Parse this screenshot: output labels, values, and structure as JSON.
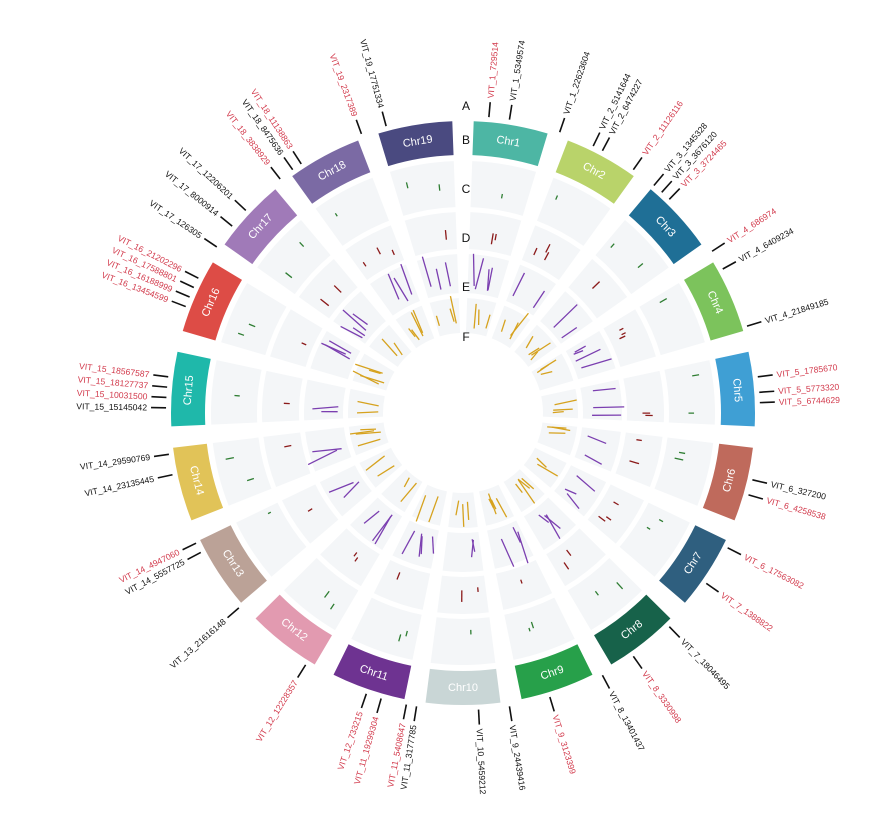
{
  "track_labels": [
    "A",
    "B",
    "C",
    "D",
    "E",
    "F"
  ],
  "colors": {
    "track_bg": "#f4f6f8",
    "label_red": "#d23a4c",
    "label_black": "#111111",
    "track_C": "#2e7d32",
    "track_D": "#8b1a1a",
    "track_E": "#7b3fb0",
    "track_F": "#d6a21e"
  },
  "chromosomes": [
    {
      "name": "Chr1",
      "color": "#4db6a4"
    },
    {
      "name": "Chr2",
      "color": "#b9d36a"
    },
    {
      "name": "Chr3",
      "color": "#1f6f96"
    },
    {
      "name": "Chr4",
      "color": "#7cc35c"
    },
    {
      "name": "Chr5",
      "color": "#3f9fd4"
    },
    {
      "name": "Chr6",
      "color": "#bf6a5c"
    },
    {
      "name": "Chr7",
      "color": "#2f5f7f"
    },
    {
      "name": "Chr8",
      "color": "#17624a"
    },
    {
      "name": "Chr9",
      "color": "#27a04a"
    },
    {
      "name": "Chr10",
      "color": "#c9d6d6"
    },
    {
      "name": "Chr11",
      "color": "#6e3391"
    },
    {
      "name": "Chr12",
      "color": "#e29ab0"
    },
    {
      "name": "Chr13",
      "color": "#bba297"
    },
    {
      "name": "Chr14",
      "color": "#e1c358"
    },
    {
      "name": "Chr15",
      "color": "#1fb8aa"
    },
    {
      "name": "Chr16",
      "color": "#dd4c46"
    },
    {
      "name": "Chr17",
      "color": "#a07ab8"
    },
    {
      "name": "Chr18",
      "color": "#7b6aa4"
    },
    {
      "name": "Chr19",
      "color": "#4a4a80"
    }
  ],
  "gene_labels": [
    {
      "text": "VIT_1_729514",
      "color": "red",
      "angle": 5
    },
    {
      "text": "VIT_1_5349574",
      "color": "black",
      "angle": 9
    },
    {
      "text": "VIT_1_22623604",
      "color": "black",
      "angle": 19
    },
    {
      "text": "VIT_2_5141644",
      "color": "black",
      "angle": 26
    },
    {
      "text": "VIT_2_6474227",
      "color": "black",
      "angle": 28
    },
    {
      "text": "VIT_2_11126116",
      "color": "red",
      "angle": 35
    },
    {
      "text": "VIT_3_1345328",
      "color": "black",
      "angle": 40
    },
    {
      "text": "VIT_3_3676120",
      "color": "black",
      "angle": 42
    },
    {
      "text": "VIT_3_3724465",
      "color": "red",
      "angle": 44
    },
    {
      "text": "VIT_4_686974",
      "color": "red",
      "angle": 57
    },
    {
      "text": "VIT_4_6409234",
      "color": "black",
      "angle": 61
    },
    {
      "text": "VIT_4_21849185",
      "color": "black",
      "angle": 73
    },
    {
      "text": "VIT_5_1785670",
      "color": "red",
      "angle": 83
    },
    {
      "text": "VIT_5_5773320",
      "color": "red",
      "angle": 86
    },
    {
      "text": "VIT_5_6744629",
      "color": "red",
      "angle": 88
    },
    {
      "text": "VIT_6_327200",
      "color": "black",
      "angle": 103
    },
    {
      "text": "VIT_6_4258538",
      "color": "red",
      "angle": 106
    },
    {
      "text": "VIT_6_17563082",
      "color": "red",
      "angle": 117
    },
    {
      "text": "VIT_7_1388822",
      "color": "red",
      "angle": 125
    },
    {
      "text": "VIT_7_18046495",
      "color": "black",
      "angle": 136
    },
    {
      "text": "VIT_8_3330998",
      "color": "red",
      "angle": 145
    },
    {
      "text": "VIT_8_13401437",
      "color": "black",
      "angle": 152
    },
    {
      "text": "VIT_9_3123399",
      "color": "red",
      "angle": 163
    },
    {
      "text": "VIT_9_24439416",
      "color": "black",
      "angle": 171
    },
    {
      "text": "VIT_10_5459212",
      "color": "black",
      "angle": 177
    },
    {
      "text": "VIT_11_3177785",
      "color": "black",
      "angle": 189
    },
    {
      "text": "VIT_11_5408647",
      "color": "red",
      "angle": 191
    },
    {
      "text": "VIT_11_19299304",
      "color": "red",
      "angle": 196
    },
    {
      "text": "VIT_12_733215",
      "color": "red",
      "angle": 199
    },
    {
      "text": "VIT_12_12228357",
      "color": "red",
      "angle": 212
    },
    {
      "text": "VIT_13_21616148",
      "color": "black",
      "angle": 229
    },
    {
      "text": "VIT_14_5557725",
      "color": "black",
      "angle": 242
    },
    {
      "text": "VIT_14_4947060",
      "color": "red",
      "angle": 244
    },
    {
      "text": "VIT_14_23135445",
      "color": "black",
      "angle": 258
    },
    {
      "text": "VIT_14_29590769",
      "color": "black",
      "angle": 262
    },
    {
      "text": "VIT_15_15145042",
      "color": "black",
      "angle": 271
    },
    {
      "text": "VIT_15_10031500",
      "color": "red",
      "angle": 273
    },
    {
      "text": "VIT_15_18127737",
      "color": "red",
      "angle": 275
    },
    {
      "text": "VIT_15_18567587",
      "color": "red",
      "angle": 277
    },
    {
      "text": "VIT_16_13454599",
      "color": "red",
      "angle": 291
    },
    {
      "text": "VIT_16_16188999",
      "color": "red",
      "angle": 293
    },
    {
      "text": "VIT_16_17588801",
      "color": "red",
      "angle": 295
    },
    {
      "text": "VIT_16_21202296",
      "color": "red",
      "angle": 297
    },
    {
      "text": "VIT_17_126305",
      "color": "black",
      "angle": 304
    },
    {
      "text": "VIT_17_8000914",
      "color": "black",
      "angle": 309
    },
    {
      "text": "VIT_17_12206201",
      "color": "black",
      "angle": 313
    },
    {
      "text": "VIT_18_3838929",
      "color": "red",
      "angle": 322
    },
    {
      "text": "VIT_18_8475636",
      "color": "black",
      "angle": 325
    },
    {
      "text": "VIT_18_11138863",
      "color": "red",
      "angle": 327
    },
    {
      "text": "VIT_19_2317389",
      "color": "red",
      "angle": 340
    },
    {
      "text": "VIT_19_17751334",
      "color": "black",
      "angle": 345
    }
  ]
}
